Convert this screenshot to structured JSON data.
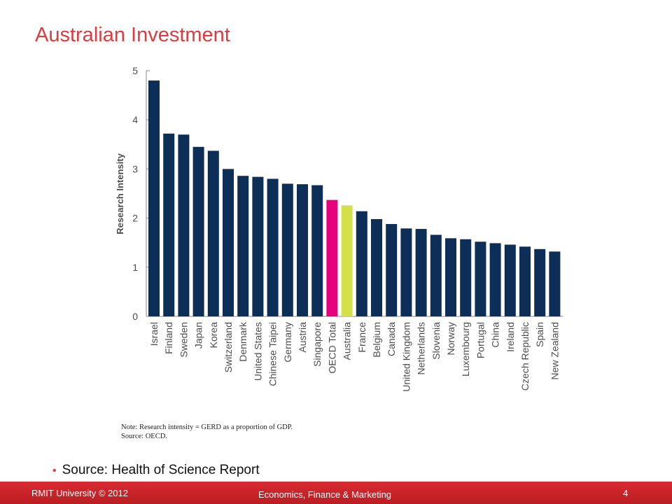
{
  "slide": {
    "title": "Australian Investment",
    "note_line1": "Note: Research intensity = GERD as a proportion of GDP.",
    "note_line2": "Source: OECD.",
    "bullet": "Source: Health of Science Report"
  },
  "footer": {
    "left": "RMIT University © 2012",
    "center": "Economics, Finance & Marketing",
    "page": "4"
  },
  "colors": {
    "bar_default": "#0d2e57",
    "bar_oecd": "#e6007e",
    "bar_australia": "#d4e04a",
    "title": "#e03a3e",
    "footer_bg": "#c8232a"
  },
  "chart_data": {
    "type": "bar",
    "ylabel": "Research Intensity",
    "ylim": [
      0,
      5
    ],
    "yticks": [
      0,
      1,
      2,
      3,
      4,
      5
    ],
    "categories": [
      "Israel",
      "Finland",
      "Sweden",
      "Japan",
      "Korea",
      "Switzerland",
      "Denmark",
      "United States",
      "Chinese Taipei",
      "Germany",
      "Austria",
      "Singapore",
      "OECD Total",
      "Australia",
      "France",
      "Belgium",
      "Canada",
      "United Kingdom",
      "Netherlands",
      "Slovenia",
      "Norway",
      "Luxembourg",
      "Portugal",
      "China",
      "Ireland",
      "Czech Republic",
      "Spain",
      "New Zealand"
    ],
    "values": [
      4.8,
      3.72,
      3.7,
      3.45,
      3.37,
      3.0,
      2.86,
      2.84,
      2.8,
      2.7,
      2.69,
      2.67,
      2.37,
      2.26,
      2.14,
      1.98,
      1.88,
      1.79,
      1.78,
      1.66,
      1.59,
      1.57,
      1.52,
      1.49,
      1.46,
      1.42,
      1.37,
      1.32
    ],
    "grid": false
  }
}
